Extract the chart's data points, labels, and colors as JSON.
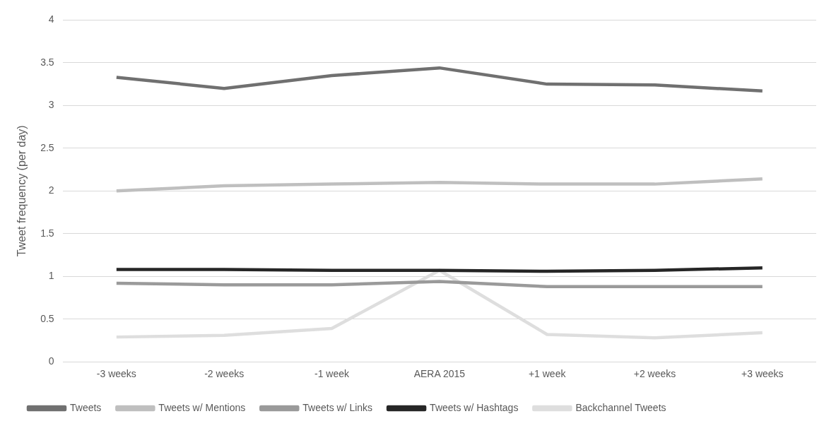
{
  "chart_data": {
    "type": "line",
    "ylabel": "Tweet frequency (per day)",
    "categories": [
      "-3 weeks",
      "-2 weeks",
      "-1 week",
      "AERA 2015",
      "+1 week",
      "+2 weeks",
      "+3 weeks"
    ],
    "series": [
      {
        "name": "Tweets",
        "color": "#707070",
        "values": [
          3.33,
          3.2,
          3.35,
          3.44,
          3.25,
          3.24,
          3.17
        ]
      },
      {
        "name": "Tweets w/ Mentions",
        "color": "#bfbfbf",
        "values": [
          2.0,
          2.06,
          2.08,
          2.1,
          2.08,
          2.08,
          2.14
        ]
      },
      {
        "name": "Tweets w/ Links",
        "color": "#9a9a9a",
        "values": [
          0.92,
          0.9,
          0.9,
          0.94,
          0.88,
          0.88,
          0.88
        ]
      },
      {
        "name": "Tweets w/ Hashtags",
        "color": "#262626",
        "values": [
          1.08,
          1.08,
          1.07,
          1.07,
          1.06,
          1.07,
          1.1
        ]
      },
      {
        "name": "Backchannel Tweets",
        "color": "#dedede",
        "values": [
          0.29,
          0.31,
          0.39,
          1.07,
          0.32,
          0.28,
          0.34
        ]
      }
    ],
    "ylim": [
      0,
      4
    ],
    "yticks": [
      0,
      0.5,
      1,
      1.5,
      2,
      2.5,
      3,
      3.5,
      4
    ],
    "grid": "y",
    "legend": "bottom",
    "marker": "none",
    "line_style": "solid"
  }
}
